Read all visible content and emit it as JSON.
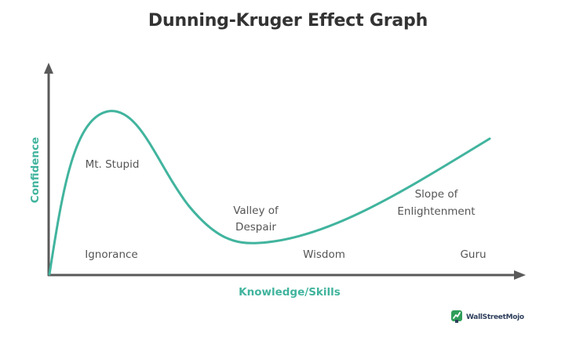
{
  "title": "Dunning-Kruger Effect Graph",
  "axes": {
    "y_label": "Confidence",
    "x_label": "Knowledge/Skills"
  },
  "annotations": {
    "peak": "Mt. Stupid",
    "valley_line1": "Valley of",
    "valley_line2": "Despair",
    "slope_line1": "Slope of",
    "slope_line2": "Enlightenment"
  },
  "stages": {
    "stage1": "Ignorance",
    "stage2": "Wisdom",
    "stage3": "Guru"
  },
  "logo": {
    "text": "WallStreetMojo",
    "icon": "wallstreetmojo-logo-icon"
  },
  "colors": {
    "curve": "#41b49e",
    "axis": "#595959",
    "text": "#555555",
    "title": "#333333"
  }
}
